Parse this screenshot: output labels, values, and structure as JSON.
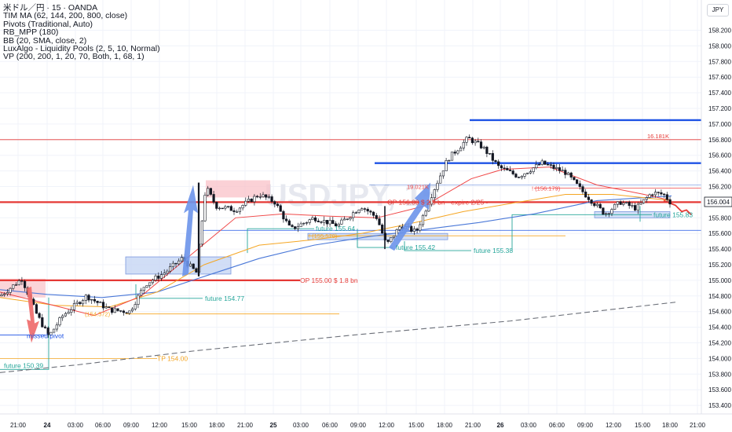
{
  "legend": {
    "symbol": "米ドル／円 · 15 · OANDA",
    "indicators": [
      "TIM MA (62, 144, 200, 800, close)",
      "Pivots (Traditional, Auto)",
      "RB_MPP (180)",
      "BB (20, SMA, close, 2)",
      "LuxAlgo - Liquidity Pools (2, 5, 10, Normal)",
      "VP (200, 200, 1, 20, 70, Both, 1, 68, 1)"
    ]
  },
  "currency_label": "JPY",
  "watermark": "USDJPY, 15",
  "price_axis": {
    "ticks": [
      "158.200",
      "158.000",
      "157.800",
      "157.600",
      "157.400",
      "157.200",
      "157.000",
      "156.800",
      "156.600",
      "156.400",
      "156.200",
      "155.800",
      "155.600",
      "155.400",
      "155.200",
      "155.000",
      "154.800",
      "154.600",
      "154.400",
      "154.200",
      "154.000",
      "153.800",
      "153.600",
      "153.400"
    ],
    "current_price": "156.004"
  },
  "time_axis": {
    "labels": [
      "21:00",
      "24",
      "03:00",
      "06:00",
      "09:00",
      "12:00",
      "15:00",
      "18:00",
      "21:00",
      "25",
      "03:00",
      "06:00",
      "09:00",
      "12:00",
      "15:00",
      "18:00",
      "21:00",
      "26",
      "03:00",
      "06:00",
      "09:00",
      "12:00",
      "15:00",
      "18:00",
      "21:00"
    ]
  },
  "annotations": {
    "missed_pivot": "missed pivot",
    "future_150": "future 150.39",
    "tp_154": "TP 154.00",
    "future_15477": "future 154.77",
    "op_155": "OP 155.00 $ 1.8 bn",
    "future_15564": "future 155.64",
    "future_15542": "future 155.42",
    "future_15538": "future 155.38",
    "op_156": "OP 156.00 $ 2.9 bn · expire 2/25 •",
    "future_15583": "future 155.83",
    "k_16181": "16.181K",
    "r_156179": "! (156.179)",
    "r_155570": "! (155.570)",
    "r_154572": "(154.572)",
    "k_19021": "19.021K"
  },
  "colors": {
    "red_level": "#e53935",
    "blue_level": "#1e53e5",
    "bull": "#ffffff",
    "bear": "#131722",
    "teal": "#26a69a",
    "orange": "#f5a623",
    "ma_red": "#f04848",
    "ma_blue": "#4a78d8",
    "pink_zone": "#f9c2c8",
    "blue_zone": "#c6d6f4",
    "arrow_blue": "#6c94ea",
    "arrow_red": "#ef7070"
  },
  "chart_data": {
    "type": "candlestick",
    "symbol": "USDJPY",
    "timeframe": "15",
    "ylim": [
      153.3,
      158.35
    ],
    "levels": [
      {
        "price": 156.8,
        "color": "red"
      },
      {
        "price": 156.0,
        "color": "red"
      },
      {
        "price": 155.0,
        "color": "red"
      },
      {
        "price": 157.05,
        "color": "blue"
      },
      {
        "price": 156.5,
        "color": "blue"
      },
      {
        "price": 155.64,
        "color": "blue"
      },
      {
        "price": 154.3,
        "color": "blue"
      },
      {
        "price": 154.0,
        "color": "orange"
      },
      {
        "price": 154.57,
        "color": "orange"
      },
      {
        "price": 155.57,
        "color": "orange"
      },
      {
        "price": 156.18,
        "color": "red"
      }
    ],
    "close_path": [
      {
        "t": 0,
        "p": 154.8
      },
      {
        "t": 28,
        "p": 155.02
      },
      {
        "t": 45,
        "p": 154.6
      },
      {
        "t": 62,
        "p": 154.28
      },
      {
        "t": 80,
        "p": 154.55
      },
      {
        "t": 110,
        "p": 154.8
      },
      {
        "t": 140,
        "p": 154.62
      },
      {
        "t": 165,
        "p": 154.6
      },
      {
        "t": 185,
        "p": 154.95
      },
      {
        "t": 210,
        "p": 155.1
      },
      {
        "t": 232,
        "p": 155.28
      },
      {
        "t": 250,
        "p": 155.1
      },
      {
        "t": 262,
        "p": 156.2
      },
      {
        "t": 275,
        "p": 155.95
      },
      {
        "t": 300,
        "p": 155.9
      },
      {
        "t": 330,
        "p": 156.1
      },
      {
        "t": 350,
        "p": 156.0
      },
      {
        "t": 370,
        "p": 155.65
      },
      {
        "t": 400,
        "p": 155.8
      },
      {
        "t": 430,
        "p": 155.7
      },
      {
        "t": 460,
        "p": 155.95
      },
      {
        "t": 480,
        "p": 155.8
      },
      {
        "t": 492,
        "p": 155.45
      },
      {
        "t": 510,
        "p": 155.7
      },
      {
        "t": 530,
        "p": 155.62
      },
      {
        "t": 552,
        "p": 156.15
      },
      {
        "t": 570,
        "p": 156.55
      },
      {
        "t": 596,
        "p": 156.82
      },
      {
        "t": 615,
        "p": 156.7
      },
      {
        "t": 635,
        "p": 156.45
      },
      {
        "t": 660,
        "p": 156.33
      },
      {
        "t": 690,
        "p": 156.5
      },
      {
        "t": 720,
        "p": 156.38
      },
      {
        "t": 745,
        "p": 156.1
      },
      {
        "t": 770,
        "p": 155.85
      },
      {
        "t": 790,
        "p": 156.0
      },
      {
        "t": 810,
        "p": 155.92
      },
      {
        "t": 830,
        "p": 156.12
      },
      {
        "t": 845,
        "p": 156.1
      },
      {
        "t": 855,
        "p": 155.98
      }
    ]
  }
}
